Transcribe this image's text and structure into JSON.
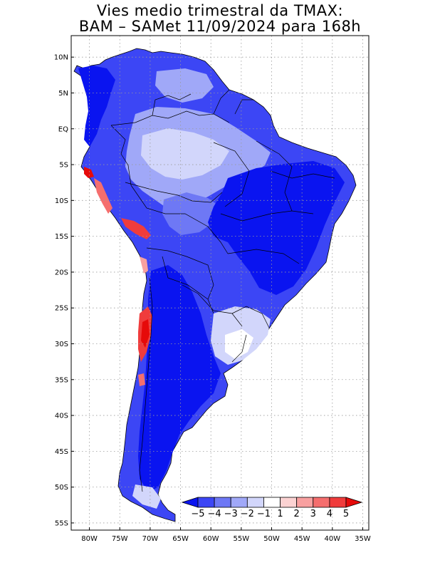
{
  "title": {
    "line1": "Vies medio trimestral da TMAX:",
    "line2": "BAM – SAMet 11/09/2024  para 168h"
  },
  "map": {
    "region": "South America",
    "lon_range": [
      -83,
      -34
    ],
    "lat_range": [
      -56,
      13
    ],
    "grid": true,
    "lat_ticks": [
      {
        "value": 10,
        "label": "10N"
      },
      {
        "value": 5,
        "label": "5N"
      },
      {
        "value": 0,
        "label": "EQ"
      },
      {
        "value": -5,
        "label": "5S"
      },
      {
        "value": -10,
        "label": "10S"
      },
      {
        "value": -15,
        "label": "15S"
      },
      {
        "value": -20,
        "label": "20S"
      },
      {
        "value": -25,
        "label": "25S"
      },
      {
        "value": -30,
        "label": "30S"
      },
      {
        "value": -35,
        "label": "35S"
      },
      {
        "value": -40,
        "label": "40S"
      },
      {
        "value": -45,
        "label": "45S"
      },
      {
        "value": -50,
        "label": "50S"
      },
      {
        "value": -55,
        "label": "55S"
      }
    ],
    "lon_ticks": [
      {
        "value": -80,
        "label": "80W"
      },
      {
        "value": -75,
        "label": "75W"
      },
      {
        "value": -70,
        "label": "70W"
      },
      {
        "value": -65,
        "label": "65W"
      },
      {
        "value": -60,
        "label": "60W"
      },
      {
        "value": -55,
        "label": "55W"
      },
      {
        "value": -50,
        "label": "50W"
      },
      {
        "value": -45,
        "label": "45W"
      },
      {
        "value": -40,
        "label": "40W"
      },
      {
        "value": -35,
        "label": "35W"
      }
    ]
  },
  "colorbar": {
    "labels": [
      "-5",
      "-4",
      "-3",
      "-2",
      "-1",
      "1",
      "2",
      "3",
      "4",
      "5"
    ],
    "colors": {
      "below": "#0a14f0",
      "b1": "#3c46f5",
      "b2": "#6e78f5",
      "b3": "#a0a8f8",
      "b4": "#d2d6fb",
      "b5": "#ffffff",
      "b6": "#fbd2d2",
      "b7": "#f8a0a0",
      "b8": "#f56e6e",
      "b9": "#f03c3c",
      "above": "#e60a0a"
    }
  }
}
